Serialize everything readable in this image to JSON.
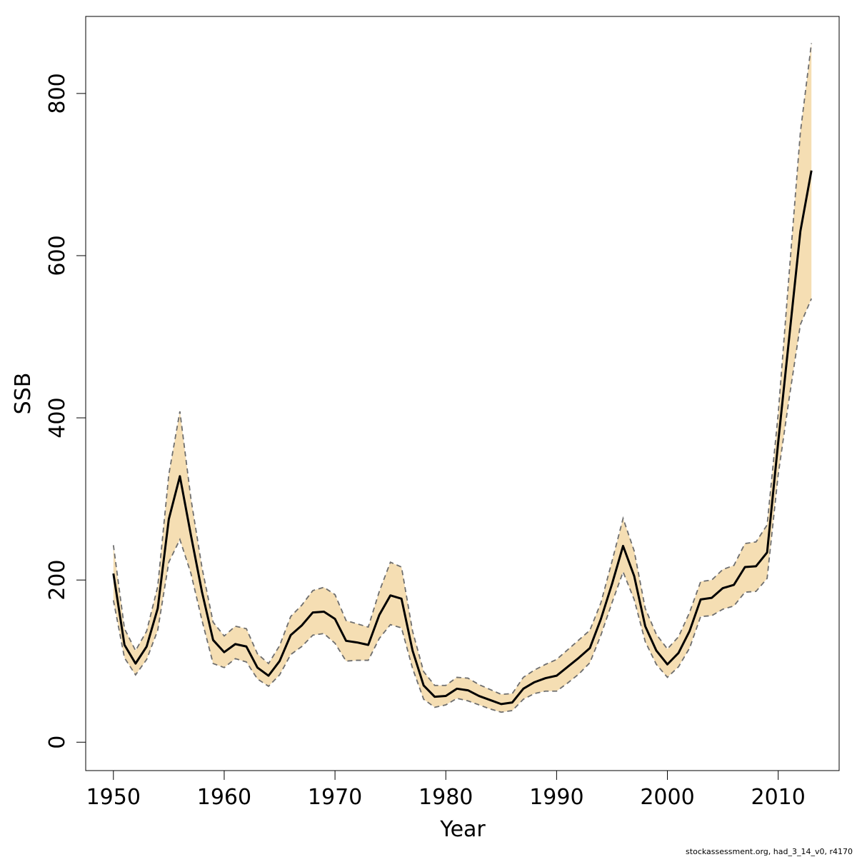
{
  "chart_data": {
    "type": "line",
    "xlabel": "Year",
    "ylabel": "SSB",
    "xlim": [
      1947.5,
      2015.5
    ],
    "ylim": [
      -35,
      895
    ],
    "x_ticks": [
      1950,
      1960,
      1970,
      1980,
      1990,
      2000,
      2010
    ],
    "y_ticks": [
      0,
      200,
      400,
      600,
      800
    ],
    "grid": false,
    "colors": {
      "band": "#f5deb3",
      "line": "#000000",
      "bounds": "#6e6e6e"
    },
    "x": [
      1950,
      1951,
      1952,
      1953,
      1954,
      1955,
      1956,
      1957,
      1958,
      1959,
      1960,
      1961,
      1962,
      1963,
      1964,
      1965,
      1966,
      1967,
      1968,
      1969,
      1970,
      1971,
      1972,
      1973,
      1974,
      1975,
      1976,
      1977,
      1978,
      1979,
      1980,
      1981,
      1982,
      1983,
      1984,
      1985,
      1986,
      1987,
      1988,
      1989,
      1990,
      1991,
      1992,
      1993,
      1994,
      1995,
      1996,
      1997,
      1998,
      1999,
      2000,
      2001,
      2002,
      2003,
      2004,
      2005,
      2006,
      2007,
      2008,
      2009,
      2010,
      2011,
      2012,
      2013
    ],
    "series": [
      {
        "role": "estimate",
        "values": [
          208,
          120,
          97,
          118,
          165,
          275,
          328,
          255,
          185,
          126,
          111,
          121,
          118,
          92,
          82,
          100,
          132,
          144,
          160,
          161,
          152,
          125,
          123,
          120,
          157,
          181,
          177,
          113,
          70,
          56,
          57,
          66,
          64,
          57,
          52,
          47,
          49,
          66,
          74,
          79,
          82,
          93,
          104,
          116,
          152,
          195,
          242,
          205,
          143,
          113,
          96,
          110,
          137,
          176,
          178,
          190,
          194,
          216,
          217,
          234,
          370,
          500,
          630,
          705
        ]
      },
      {
        "role": "upper",
        "values": [
          243,
          140,
          113,
          137,
          192,
          330,
          408,
          300,
          215,
          148,
          131,
          143,
          140,
          109,
          97,
          119,
          155,
          169,
          187,
          191,
          182,
          150,
          146,
          142,
          186,
          222,
          216,
          137,
          87,
          70,
          70,
          80,
          79,
          71,
          65,
          59,
          60,
          80,
          89,
          96,
          102,
          114,
          126,
          138,
          172,
          223,
          276,
          236,
          165,
          133,
          115,
          130,
          160,
          198,
          200,
          213,
          218,
          245,
          247,
          268,
          405,
          580,
          752,
          862
        ]
      },
      {
        "role": "lower",
        "values": [
          175,
          104,
          83,
          102,
          138,
          222,
          250,
          208,
          150,
          97,
          92,
          103,
          99,
          78,
          69,
          83,
          108,
          118,
          132,
          134,
          122,
          100,
          101,
          101,
          128,
          145,
          141,
          91,
          53,
          43,
          46,
          54,
          51,
          46,
          41,
          37,
          39,
          53,
          60,
          63,
          63,
          73,
          84,
          98,
          132,
          172,
          210,
          176,
          124,
          96,
          80,
          93,
          116,
          155,
          156,
          164,
          168,
          185,
          186,
          202,
          330,
          425,
          515,
          547
        ]
      }
    ]
  },
  "footer_text": "stockassessment.org, had_3_14_v0, r4170"
}
